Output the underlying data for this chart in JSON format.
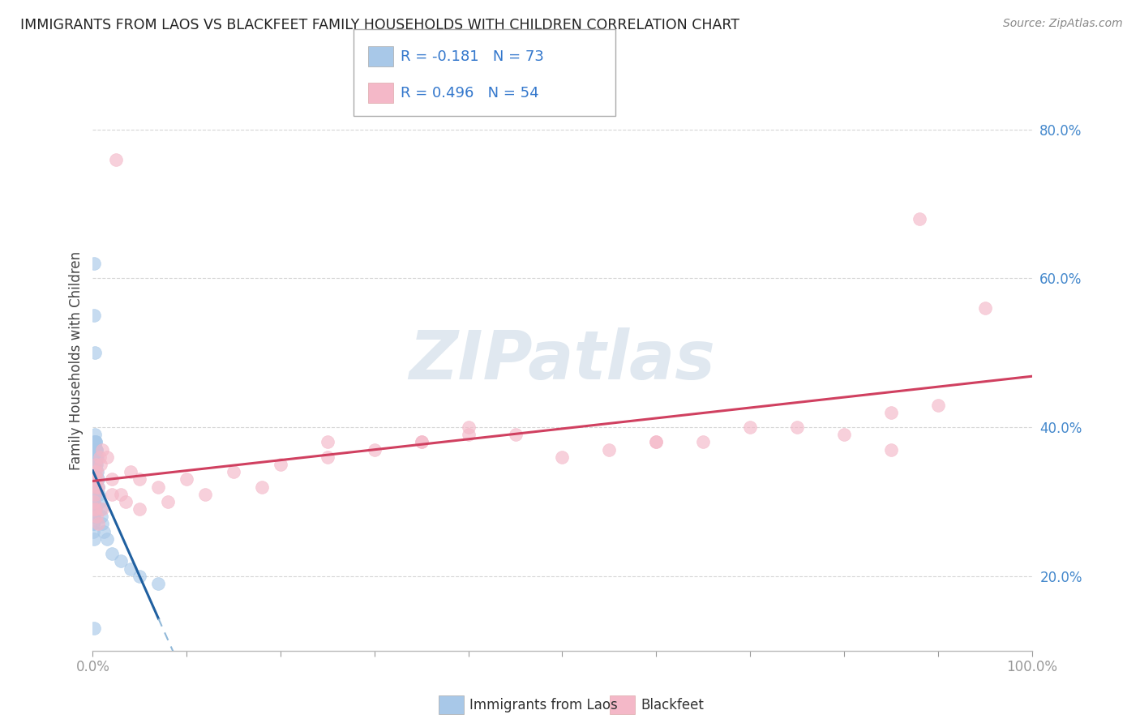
{
  "title": "IMMIGRANTS FROM LAOS VS BLACKFEET FAMILY HOUSEHOLDS WITH CHILDREN CORRELATION CHART",
  "source": "Source: ZipAtlas.com",
  "ylabel": "Family Households with Children",
  "legend1_r": "-0.181",
  "legend1_n": "73",
  "legend2_r": "0.496",
  "legend2_n": "54",
  "legend1_label": "Immigrants from Laos",
  "legend2_label": "Blackfeet",
  "blue_color": "#a8c8e8",
  "pink_color": "#f4b8c8",
  "blue_line_color": "#2060a0",
  "pink_line_color": "#d04060",
  "blue_scatter_x": [
    0.05,
    0.05,
    0.05,
    0.06,
    0.06,
    0.07,
    0.08,
    0.08,
    0.09,
    0.1,
    0.1,
    0.1,
    0.11,
    0.12,
    0.12,
    0.13,
    0.14,
    0.15,
    0.15,
    0.16,
    0.17,
    0.18,
    0.18,
    0.19,
    0.2,
    0.2,
    0.21,
    0.22,
    0.23,
    0.24,
    0.25,
    0.25,
    0.26,
    0.27,
    0.28,
    0.3,
    0.3,
    0.32,
    0.33,
    0.35,
    0.37,
    0.4,
    0.4,
    0.42,
    0.45,
    0.5,
    0.55,
    0.6,
    0.65,
    0.7,
    0.8,
    0.9,
    1.0,
    1.2,
    1.5,
    2.0,
    3.0,
    4.0,
    5.0,
    7.0,
    0.05,
    0.06,
    0.07,
    0.08,
    0.1,
    0.12,
    0.15,
    0.2,
    0.25,
    0.3,
    0.18,
    0.22,
    0.15
  ],
  "blue_scatter_y": [
    33,
    30,
    28,
    31,
    27,
    29,
    34,
    26,
    32,
    35,
    28,
    25,
    33,
    36,
    30,
    29,
    37,
    38,
    62,
    31,
    34,
    36,
    28,
    35,
    37,
    33,
    36,
    38,
    35,
    37,
    39,
    36,
    34,
    37,
    38,
    36,
    35,
    37,
    36,
    38,
    37,
    36,
    35,
    37,
    36,
    34,
    33,
    32,
    31,
    30,
    29,
    28,
    27,
    26,
    25,
    23,
    22,
    21,
    20,
    19,
    29,
    31,
    27,
    30,
    32,
    34,
    35,
    33,
    31,
    29,
    55,
    50,
    13
  ],
  "pink_scatter_x": [
    0.1,
    0.15,
    0.2,
    0.25,
    0.3,
    0.35,
    0.4,
    0.5,
    0.6,
    0.7,
    0.8,
    1.0,
    1.5,
    2.0,
    3.0,
    4.0,
    5.0,
    7.0,
    10.0,
    15.0,
    20.0,
    25.0,
    30.0,
    35.0,
    40.0,
    50.0,
    60.0,
    70.0,
    80.0,
    85.0,
    90.0,
    95.0,
    0.2,
    0.3,
    0.4,
    0.6,
    1.0,
    2.0,
    3.5,
    5.0,
    8.0,
    12.0,
    18.0,
    25.0,
    35.0,
    45.0,
    55.0,
    65.0,
    75.0,
    85.0,
    2.5,
    40.0,
    60.0,
    88.0
  ],
  "pink_scatter_y": [
    30,
    29,
    31,
    33,
    32,
    35,
    34,
    33,
    32,
    36,
    35,
    37,
    36,
    33,
    31,
    34,
    33,
    32,
    33,
    34,
    35,
    36,
    37,
    38,
    39,
    36,
    38,
    40,
    39,
    42,
    43,
    56,
    34,
    29,
    28,
    27,
    29,
    31,
    30,
    29,
    30,
    31,
    32,
    38,
    38,
    39,
    37,
    38,
    40,
    37,
    76,
    40,
    38,
    68
  ],
  "xlim": [
    0,
    100
  ],
  "ylim": [
    10,
    88
  ],
  "yticks": [
    20,
    40,
    60,
    80
  ],
  "xtick_positions": [
    0,
    10,
    20,
    30,
    40,
    50,
    60,
    70,
    80,
    90,
    100
  ],
  "background_color": "#ffffff",
  "watermark_text": "ZIPatlas",
  "watermark_color": "#e0e8f0"
}
